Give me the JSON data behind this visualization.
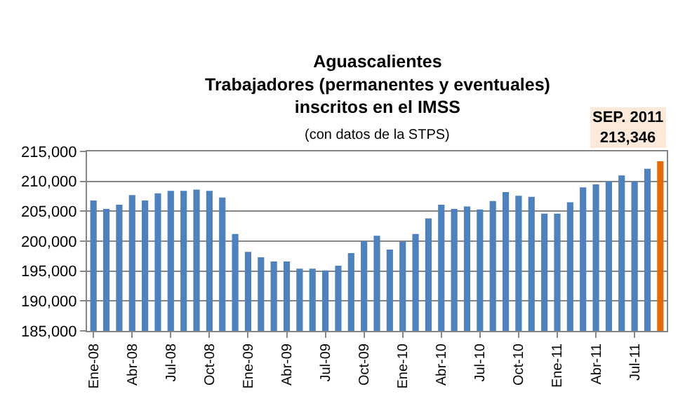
{
  "chart_data": {
    "type": "bar",
    "title": "Aguascalientes\nTrabajadores (permanentes y eventuales)\ninscritos en el IMSS",
    "subtitle": "(con datos de la STPS)",
    "categories": [
      "Ene-08",
      null,
      null,
      "Abr-08",
      null,
      null,
      "Jul-08",
      null,
      null,
      "Oct-08",
      null,
      null,
      "Ene-09",
      null,
      null,
      "Abr-09",
      null,
      null,
      "Jul-09",
      null,
      null,
      "Oct-09",
      null,
      null,
      "Ene-10",
      null,
      null,
      "Abr-10",
      null,
      null,
      "Jul-10",
      null,
      null,
      "Oct-10",
      null,
      null,
      "Ene-11",
      null,
      null,
      "Abr-11",
      null,
      null,
      "Jul-11",
      null,
      null
    ],
    "values": [
      206800,
      205400,
      206100,
      207700,
      206800,
      208000,
      208400,
      208400,
      208600,
      208400,
      207300,
      201200,
      198200,
      197300,
      196600,
      196600,
      195400,
      195400,
      195100,
      195900,
      198000,
      200000,
      200900,
      198600,
      199900,
      201200,
      203800,
      206100,
      205400,
      205800,
      205300,
      206700,
      208200,
      207600,
      207400,
      204600,
      204600,
      206500,
      209000,
      209500,
      210000,
      211000,
      210000,
      212100,
      213346
    ],
    "colors": [
      "#4f81bd",
      "#4f81bd",
      "#4f81bd",
      "#4f81bd",
      "#4f81bd",
      "#4f81bd",
      "#4f81bd",
      "#4f81bd",
      "#4f81bd",
      "#4f81bd",
      "#4f81bd",
      "#4f81bd",
      "#4f81bd",
      "#4f81bd",
      "#4f81bd",
      "#4f81bd",
      "#4f81bd",
      "#4f81bd",
      "#4f81bd",
      "#4f81bd",
      "#4f81bd",
      "#4f81bd",
      "#4f81bd",
      "#4f81bd",
      "#4f81bd",
      "#4f81bd",
      "#4f81bd",
      "#4f81bd",
      "#4f81bd",
      "#4f81bd",
      "#4f81bd",
      "#4f81bd",
      "#4f81bd",
      "#4f81bd",
      "#4f81bd",
      "#4f81bd",
      "#4f81bd",
      "#4f81bd",
      "#4f81bd",
      "#4f81bd",
      "#4f81bd",
      "#4f81bd",
      "#4f81bd",
      "#4f81bd",
      "#e36c09"
    ],
    "annotations": [
      "SEP. 2011\n213,346"
    ],
    "ylim": [
      185000,
      215000
    ],
    "yticks": [
      {
        "value": 185000,
        "label": "185,000"
      },
      {
        "value": 190000,
        "label": "190,000"
      },
      {
        "value": 195000,
        "label": "195,000"
      },
      {
        "value": 200000,
        "label": "200,000"
      },
      {
        "value": 205000,
        "label": "205,000"
      },
      {
        "value": 210000,
        "label": "210,000"
      },
      {
        "value": 215000,
        "label": "215,000"
      }
    ],
    "grid": "y"
  }
}
